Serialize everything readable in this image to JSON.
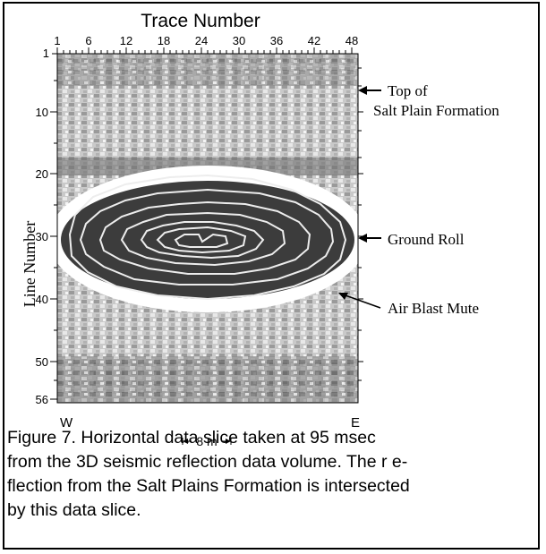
{
  "figure": {
    "top_axis_title": "Trace Number",
    "trace_ticks": [
      "1",
      "6",
      "12",
      "18",
      "24",
      "30",
      "36",
      "42",
      "48"
    ],
    "left_axis_title": "Line Number",
    "line_ticks": [
      "1",
      "10",
      "20",
      "30",
      "40",
      "50",
      "56"
    ],
    "west_label": "W",
    "east_label": "E",
    "scale_label": "8 m",
    "annotations": {
      "top_of_formation_line1": "Top of",
      "top_of_formation_line2": "Salt Plain Formation",
      "ground_roll": "Ground Roll",
      "air_blast_mute": "Air Blast Mute"
    }
  },
  "caption": {
    "line1": "Figure 7. Horizontal data slice taken at 95 msec",
    "line2": "from the 3D seismic reflection data volume. The r e-",
    "line3": "flection from the Salt Plains Formation is intersected",
    "line4": "by this data slice."
  }
}
